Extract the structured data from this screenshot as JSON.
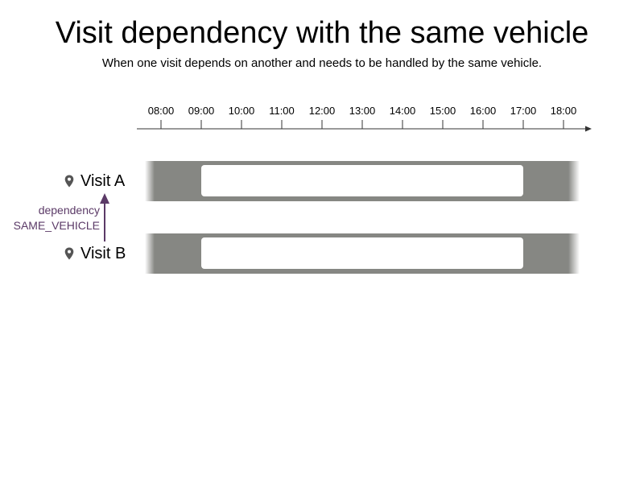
{
  "title": "Visit dependency with the same vehicle",
  "subtitle": "When one visit depends on another and needs to be handled by the same vehicle.",
  "timeline": {
    "ticks": [
      "08:00",
      "09:00",
      "10:00",
      "11:00",
      "12:00",
      "13:00",
      "14:00",
      "15:00",
      "16:00",
      "17:00",
      "18:00"
    ]
  },
  "visits": [
    {
      "label": "Visit A",
      "icon": "location-pin-icon",
      "window_start": "09:00",
      "window_end": "17:00"
    },
    {
      "label": "Visit B",
      "icon": "location-pin-icon",
      "window_start": "09:00",
      "window_end": "17:00"
    }
  ],
  "dependency": {
    "line1": "dependency",
    "line2": "SAME_VEHICLE",
    "from": "Visit B",
    "to": "Visit A",
    "color": "#5b3a67"
  },
  "colors": {
    "track": "#868783",
    "window": "#ffffff",
    "axis": "#333333"
  }
}
